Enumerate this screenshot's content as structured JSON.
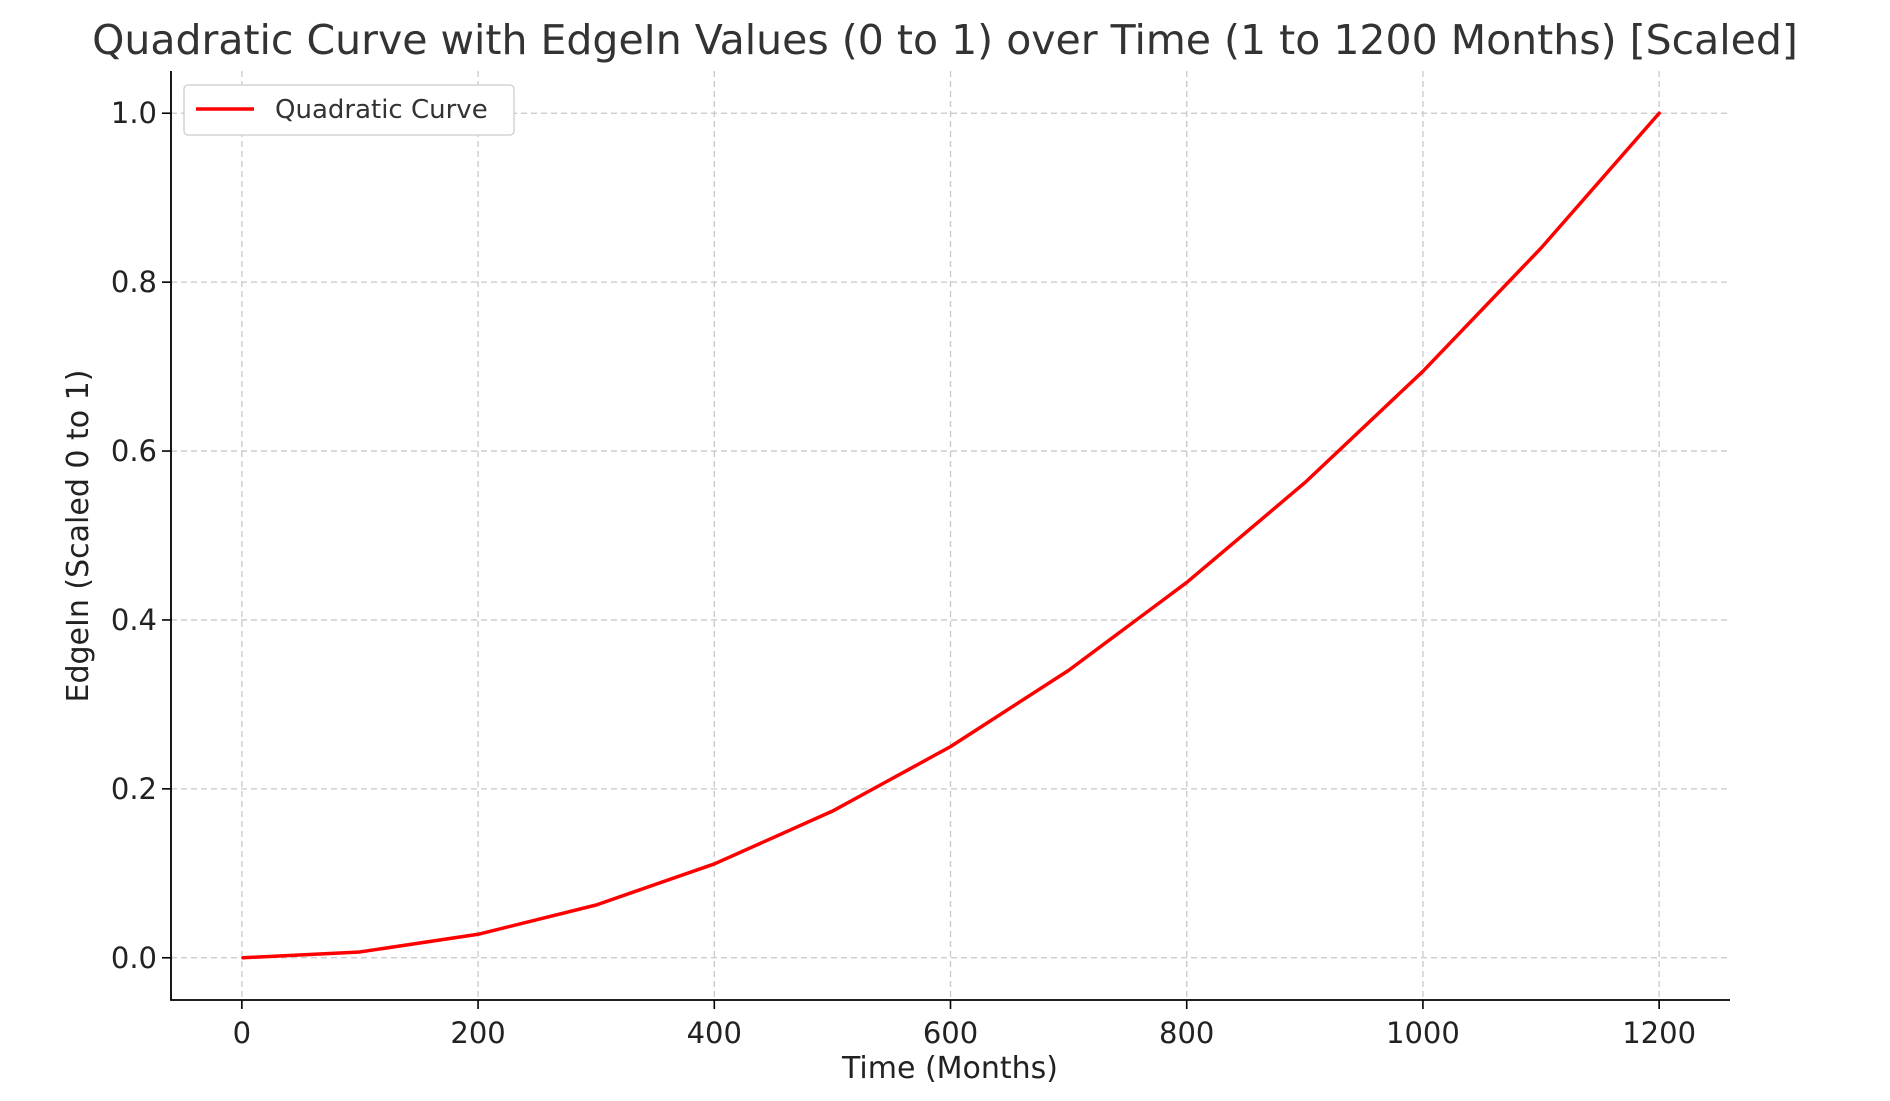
{
  "chart_data": {
    "type": "line",
    "title": "Quadratic Curve with EdgeIn Values (0 to 1) over Time (1 to 1200 Months) [Scaled]",
    "xlabel": "Time (Months)",
    "ylabel": "EdgeIn (Scaled 0 to 1)",
    "xlim": [
      -60,
      1260
    ],
    "ylim": [
      -0.05,
      1.05
    ],
    "x_ticks": [
      0,
      200,
      400,
      600,
      800,
      1000,
      1200
    ],
    "x_tick_labels": [
      "0",
      "200",
      "400",
      "600",
      "800",
      "1000",
      "1200"
    ],
    "y_ticks": [
      0.0,
      0.2,
      0.4,
      0.6,
      0.8,
      1.0
    ],
    "y_tick_labels": [
      "0.0",
      "0.2",
      "0.4",
      "0.6",
      "0.8",
      "1.0"
    ],
    "grid": true,
    "legend_position": "top-left",
    "series": [
      {
        "name": "Quadratic Curve",
        "color": "#ff0000",
        "x": [
          1,
          100,
          200,
          300,
          400,
          500,
          600,
          700,
          800,
          900,
          1000,
          1100,
          1200
        ],
        "y": [
          0.0,
          0.0069,
          0.0278,
          0.0625,
          0.1111,
          0.1736,
          0.25,
          0.3403,
          0.4444,
          0.5625,
          0.6944,
          0.8403,
          1.0
        ]
      }
    ]
  }
}
